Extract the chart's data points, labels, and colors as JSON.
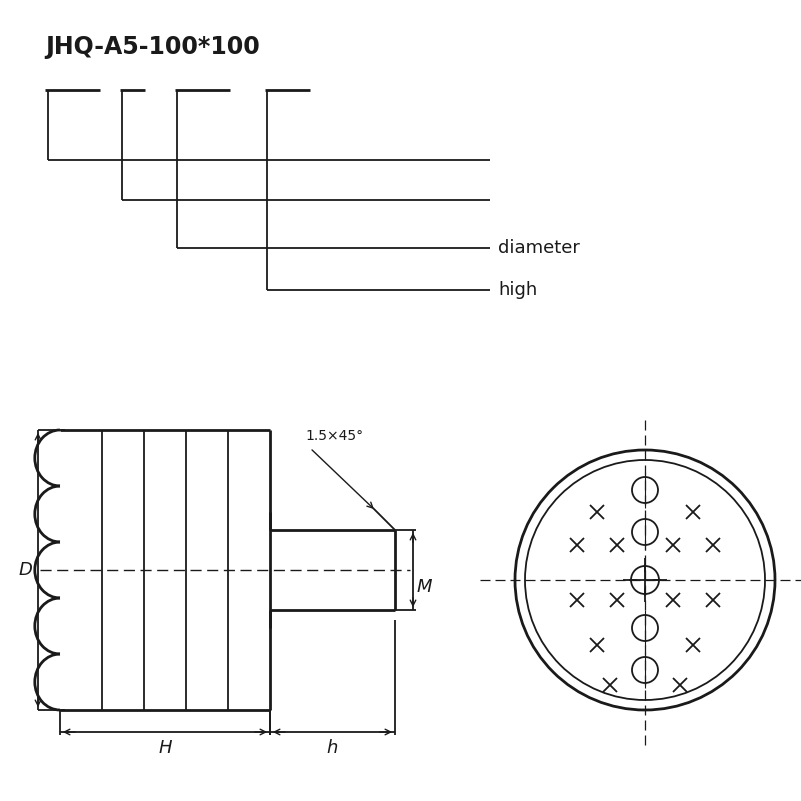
{
  "title": "JHQ-A5-100*100",
  "bg_color": "#ffffff",
  "line_color": "#1a1a1a",
  "label_high": "high",
  "label_diameter": "diameter",
  "label_D": "D",
  "label_H": "H",
  "label_h": "h",
  "label_M": "M",
  "label_chamfer": "1.5×45°"
}
